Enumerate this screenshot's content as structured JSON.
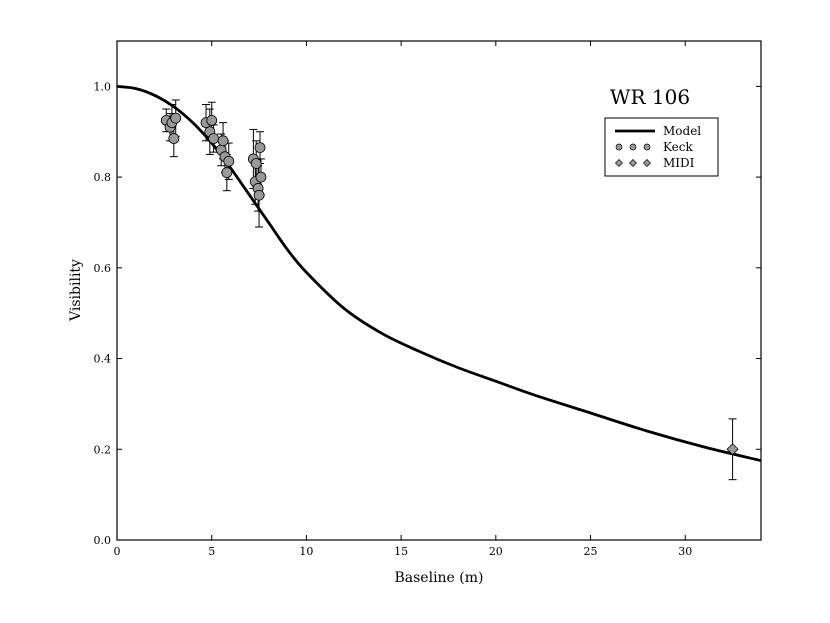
{
  "chart_data": {
    "type": "scatter",
    "title": "WR 106",
    "xlabel": "Baseline (m)",
    "ylabel": "Visibility",
    "xlim": [
      0,
      34
    ],
    "ylim": [
      0,
      1.1
    ],
    "xticks": [
      0,
      5,
      10,
      15,
      20,
      25,
      30
    ],
    "xtick_labels": [
      "0",
      "5",
      "10",
      "15",
      "20",
      "25",
      "30"
    ],
    "yticks": [
      0.0,
      0.2,
      0.4,
      0.6,
      0.8,
      1.0
    ],
    "ytick_labels": [
      "0.0",
      "0.2",
      "0.4",
      "0.6",
      "0.8",
      "1.0"
    ],
    "grid": false,
    "legend_position": "top-right",
    "colors": {
      "marker_fill": "#999999",
      "line": "#000000"
    },
    "series": [
      {
        "name": "Model",
        "type": "line",
        "x": [
          0,
          1,
          2,
          3,
          4,
          5,
          6,
          7,
          8,
          9,
          10,
          12,
          14,
          16,
          18,
          20,
          22,
          25,
          28,
          31,
          34
        ],
        "y": [
          1.0,
          0.995,
          0.98,
          0.955,
          0.92,
          0.875,
          0.82,
          0.76,
          0.7,
          0.64,
          0.59,
          0.51,
          0.455,
          0.415,
          0.38,
          0.35,
          0.32,
          0.28,
          0.24,
          0.205,
          0.175
        ]
      },
      {
        "name": "Keck",
        "type": "scatter",
        "marker": "circle",
        "points": [
          {
            "x": 2.6,
            "y": 0.925,
            "err": 0.025
          },
          {
            "x": 2.8,
            "y": 0.91,
            "err": 0.03
          },
          {
            "x": 2.9,
            "y": 0.92,
            "err": 0.04
          },
          {
            "x": 3.0,
            "y": 0.885,
            "err": 0.04
          },
          {
            "x": 3.1,
            "y": 0.93,
            "err": 0.04
          },
          {
            "x": 4.7,
            "y": 0.92,
            "err": 0.04
          },
          {
            "x": 4.9,
            "y": 0.9,
            "err": 0.05
          },
          {
            "x": 5.0,
            "y": 0.925,
            "err": 0.04
          },
          {
            "x": 5.1,
            "y": 0.885,
            "err": 0.03
          },
          {
            "x": 5.5,
            "y": 0.86,
            "err": 0.035
          },
          {
            "x": 5.6,
            "y": 0.88,
            "err": 0.04
          },
          {
            "x": 5.7,
            "y": 0.845,
            "err": 0.035
          },
          {
            "x": 5.8,
            "y": 0.81,
            "err": 0.04
          },
          {
            "x": 5.9,
            "y": 0.835,
            "err": 0.04
          },
          {
            "x": 7.2,
            "y": 0.84,
            "err": 0.065
          },
          {
            "x": 7.3,
            "y": 0.79,
            "err": 0.05
          },
          {
            "x": 7.35,
            "y": 0.83,
            "err": 0.05
          },
          {
            "x": 7.45,
            "y": 0.775,
            "err": 0.05
          },
          {
            "x": 7.5,
            "y": 0.76,
            "err": 0.07
          },
          {
            "x": 7.55,
            "y": 0.865,
            "err": 0.035
          },
          {
            "x": 7.6,
            "y": 0.8,
            "err": 0.04
          }
        ]
      },
      {
        "name": "MIDI",
        "type": "scatter",
        "marker": "diamond",
        "points": [
          {
            "x": 32.5,
            "y": 0.2,
            "err": 0.067
          }
        ]
      }
    ]
  }
}
